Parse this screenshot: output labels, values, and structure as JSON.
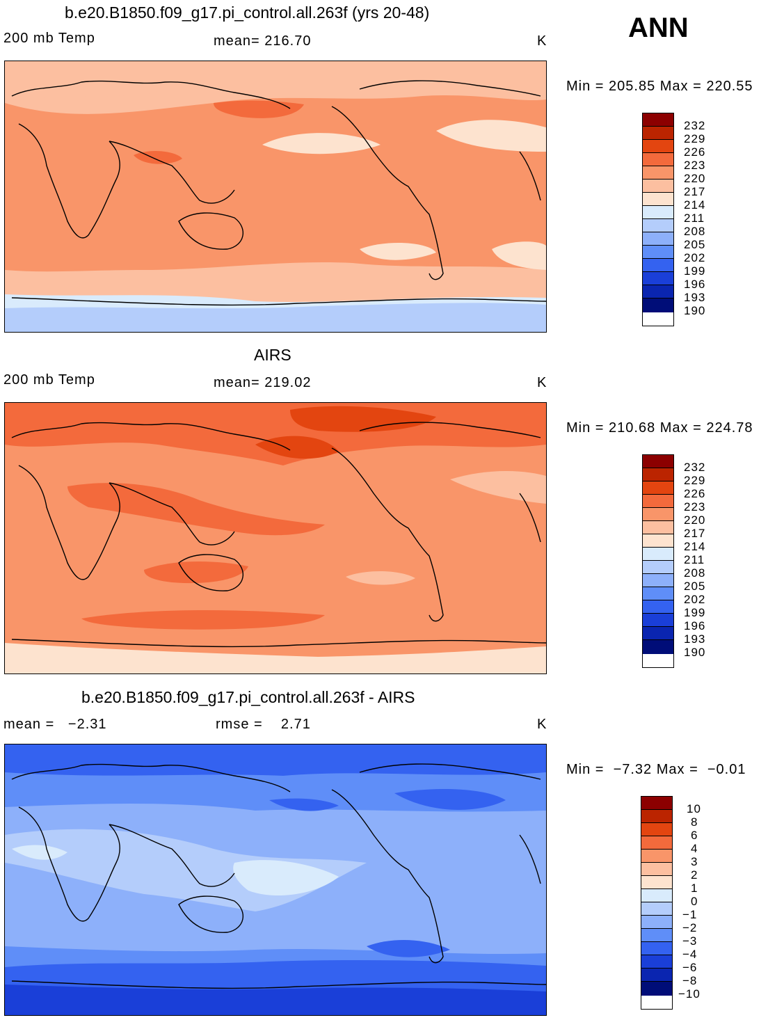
{
  "annotation": "ANN",
  "colors": {
    "c232": "#8c0000",
    "c229": "#bb2400",
    "c226": "#e34510",
    "c223": "#f36a3c",
    "c220": "#f99569",
    "c217": "#fcbfa0",
    "c214": "#fde3cf",
    "c211": "#d9ebfc",
    "c208": "#b4cdfb",
    "c205": "#8db0fa",
    "c202": "#5f8ef8",
    "c199": "#3462f0",
    "c196": "#1a3fd8",
    "c193": "#0a25b0",
    "c190": "#000d78"
  },
  "panels": [
    {
      "title": "b.e20.B1850.f09_g17.pi_control.all.263f (yrs 20-48)",
      "left_label": "200 mb Temp",
      "center_label": "mean= 216.70",
      "units": "K",
      "min_max": "Min = 205.85 Max = 220.55"
    },
    {
      "title": "AIRS",
      "left_label": "200 mb Temp",
      "center_label": "mean= 219.02",
      "units": "K",
      "min_max": "Min = 210.68 Max = 224.78"
    },
    {
      "title": "b.e20.B1850.f09_g17.pi_control.all.263f - AIRS",
      "left_label": "mean =   −2.31",
      "center_label": "rmse =    2.71",
      "units": "K",
      "min_max": "Min =  −7.32 Max =  −0.01"
    }
  ],
  "chart_data": [
    {
      "type": "heatmap",
      "title": "b.e20.B1850.f09_g17.pi_control.all.263f (yrs 20-48)",
      "variable": "200 mb Temp",
      "units": "K",
      "mean": 216.7,
      "min": 205.85,
      "max": 220.55,
      "colorbar_ticks": [
        "232",
        "229",
        "226",
        "223",
        "220",
        "217",
        "214",
        "211",
        "208",
        "205",
        "202",
        "199",
        "196",
        "193",
        "190"
      ]
    },
    {
      "type": "heatmap",
      "title": "AIRS",
      "variable": "200 mb Temp",
      "units": "K",
      "mean": 219.02,
      "min": 210.68,
      "max": 224.78,
      "colorbar_ticks": [
        "232",
        "229",
        "226",
        "223",
        "220",
        "217",
        "214",
        "211",
        "208",
        "205",
        "202",
        "199",
        "196",
        "193",
        "190"
      ]
    },
    {
      "type": "heatmap",
      "title": "b.e20.B1850.f09_g17.pi_control.all.263f - AIRS",
      "units": "K",
      "mean": -2.31,
      "rmse": 2.71,
      "min": -7.32,
      "max": -0.01,
      "colorbar_ticks": [
        "10",
        "8",
        "6",
        "4",
        "3",
        "2",
        "1",
        "0",
        "−1",
        "−2",
        "−3",
        "−4",
        "−6",
        "−8",
        "−10"
      ]
    }
  ]
}
